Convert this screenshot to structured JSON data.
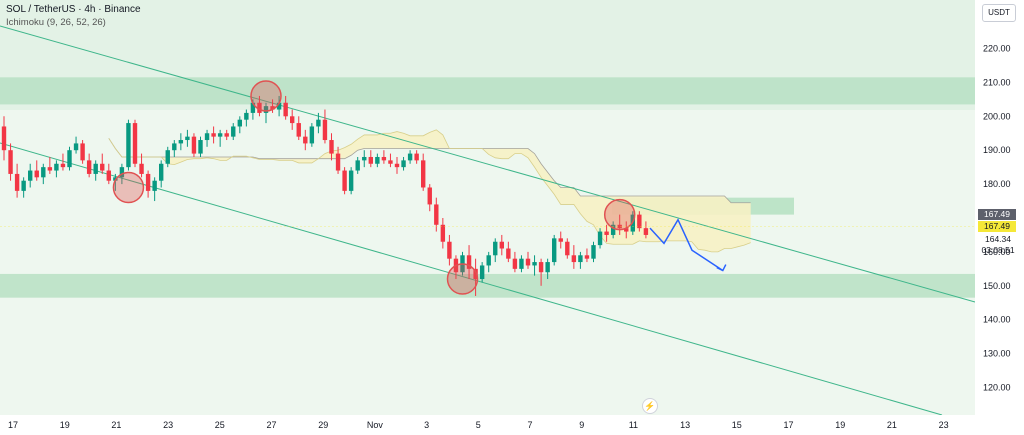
{
  "header": {
    "symbol_line": "SOL / TetherUS · 4h · Binance",
    "indicator_line": "Ichimoku (9, 26, 52, 26)"
  },
  "currency_button": "USDT",
  "price_tags": {
    "ichimoku_value": "167.49",
    "last_price": "167.49",
    "current_price": "164.34",
    "countdown": "03:08:51"
  },
  "icons": {
    "lightning": "lightning-icon"
  },
  "colors": {
    "up_candle": "#089981",
    "down_candle": "#f23645",
    "zone_green": "#b7e1c3",
    "background_green": "#e3f2e6",
    "channel_line": "#3fb68b",
    "cloud_yellow": "#f6f1c4",
    "marker_red": "#e05252",
    "projection_blue": "#2962ff"
  },
  "chart_data": {
    "type": "candlestick",
    "y_axis": {
      "ticks": [
        120,
        130,
        140,
        150,
        160,
        180,
        190,
        200,
        210,
        220
      ],
      "range": [
        110,
        225
      ]
    },
    "x_axis": {
      "ticks": [
        "17",
        "19",
        "21",
        "23",
        "25",
        "27",
        "29",
        "Nov",
        "3",
        "5",
        "7",
        "9",
        "11",
        "13",
        "15",
        "17",
        "19",
        "21",
        "23"
      ]
    },
    "zones": [
      {
        "from": 203.5,
        "to": 211.5
      },
      {
        "from": 146.5,
        "to": 153.5
      }
    ],
    "channel_lines": [
      {
        "from": {
          "x": "Oct 17",
          "y": 226
        },
        "to": {
          "x": "Nov 23",
          "y": 145
        }
      },
      {
        "from": {
          "x": "Oct 17",
          "y": 193
        },
        "to": {
          "x": "Nov 23",
          "y": 113
        }
      }
    ],
    "candles": [
      [
        197,
        200,
        187,
        190
      ],
      [
        190,
        192,
        181,
        183
      ],
      [
        183,
        186,
        176,
        178
      ],
      [
        178,
        182,
        176,
        181
      ],
      [
        181,
        186,
        179,
        184
      ],
      [
        184,
        187,
        181,
        182
      ],
      [
        182,
        186,
        180,
        185
      ],
      [
        185,
        188,
        183,
        184
      ],
      [
        184,
        187,
        182,
        186
      ],
      [
        186,
        189,
        184,
        185
      ],
      [
        185,
        191,
        184,
        190
      ],
      [
        190,
        194,
        189,
        192
      ],
      [
        192,
        193,
        186,
        187
      ],
      [
        187,
        189,
        182,
        183
      ],
      [
        183,
        187,
        181,
        186
      ],
      [
        186,
        189,
        183,
        184
      ],
      [
        184,
        186,
        180,
        181
      ],
      [
        181,
        183,
        178,
        182
      ],
      [
        182,
        186,
        180,
        185
      ],
      [
        185,
        199,
        184,
        198
      ],
      [
        198,
        199,
        185,
        186
      ],
      [
        186,
        189,
        182,
        183
      ],
      [
        183,
        184,
        176,
        178
      ],
      [
        178,
        182,
        175,
        181
      ],
      [
        181,
        187,
        179,
        186
      ],
      [
        186,
        191,
        185,
        190
      ],
      [
        190,
        193,
        188,
        192
      ],
      [
        192,
        195,
        190,
        193
      ],
      [
        193,
        196,
        191,
        194
      ],
      [
        194,
        195,
        188,
        189
      ],
      [
        189,
        194,
        188,
        193
      ],
      [
        193,
        196,
        191,
        195
      ],
      [
        195,
        197,
        192,
        194
      ],
      [
        194,
        196,
        191,
        195
      ],
      [
        195,
        196,
        193,
        194
      ],
      [
        194,
        198,
        193,
        197
      ],
      [
        197,
        200,
        195,
        199
      ],
      [
        199,
        202,
        197,
        201
      ],
      [
        201,
        205,
        199,
        204
      ],
      [
        204,
        206,
        200,
        201
      ],
      [
        201,
        204,
        198,
        203
      ],
      [
        203,
        205,
        201,
        202
      ],
      [
        202,
        206,
        200,
        204
      ],
      [
        204,
        206,
        199,
        200
      ],
      [
        200,
        202,
        196,
        198
      ],
      [
        198,
        200,
        193,
        194
      ],
      [
        194,
        196,
        190,
        192
      ],
      [
        192,
        198,
        191,
        197
      ],
      [
        197,
        201,
        195,
        199
      ],
      [
        199,
        202,
        192,
        193
      ],
      [
        193,
        195,
        187,
        189
      ],
      [
        189,
        191,
        183,
        184
      ],
      [
        184,
        185,
        177,
        178
      ],
      [
        178,
        185,
        177,
        184
      ],
      [
        184,
        188,
        183,
        187
      ],
      [
        187,
        190,
        185,
        188
      ],
      [
        188,
        190,
        185,
        186
      ],
      [
        186,
        189,
        185,
        188
      ],
      [
        188,
        190,
        186,
        187
      ],
      [
        187,
        189,
        185,
        186
      ],
      [
        186,
        188,
        183,
        185
      ],
      [
        185,
        188,
        184,
        187
      ],
      [
        187,
        190,
        186,
        189
      ],
      [
        189,
        190,
        186,
        187
      ],
      [
        187,
        189,
        178,
        179
      ],
      [
        179,
        180,
        172,
        174
      ],
      [
        174,
        176,
        166,
        168
      ],
      [
        168,
        170,
        161,
        163
      ],
      [
        163,
        165,
        156,
        158
      ],
      [
        158,
        159,
        152,
        154
      ],
      [
        154,
        160,
        153,
        159
      ],
      [
        159,
        162,
        152,
        155
      ],
      [
        155,
        158,
        147,
        152
      ],
      [
        152,
        157,
        151,
        156
      ],
      [
        156,
        160,
        154,
        159
      ],
      [
        159,
        164,
        157,
        163
      ],
      [
        163,
        165,
        159,
        161
      ],
      [
        161,
        163,
        157,
        158
      ],
      [
        158,
        160,
        154,
        155
      ],
      [
        155,
        159,
        154,
        158
      ],
      [
        158,
        160,
        155,
        156
      ],
      [
        156,
        159,
        153,
        157
      ],
      [
        157,
        158,
        150,
        154
      ],
      [
        154,
        158,
        152,
        157
      ],
      [
        157,
        165,
        156,
        164
      ],
      [
        164,
        166,
        161,
        163
      ],
      [
        163,
        164,
        158,
        159
      ],
      [
        159,
        162,
        155,
        157
      ],
      [
        157,
        160,
        155,
        159
      ],
      [
        159,
        161,
        157,
        158
      ],
      [
        158,
        163,
        157,
        162
      ],
      [
        162,
        167,
        161,
        166
      ],
      [
        166,
        168,
        163,
        165
      ],
      [
        165,
        169,
        164,
        168
      ],
      [
        168,
        171,
        165,
        167
      ],
      [
        167,
        169,
        164,
        166
      ],
      [
        166,
        172,
        165,
        171
      ],
      [
        171,
        172,
        166,
        167
      ],
      [
        167,
        169,
        164,
        165
      ]
    ],
    "projection_path": [
      167,
      162.5,
      169.5,
      160.5,
      154.5
    ],
    "markers": [
      {
        "candle": 19,
        "price": 179
      },
      {
        "candle": 40,
        "price": 206
      },
      {
        "candle": 70,
        "price": 152
      },
      {
        "candle": 94,
        "price": 171
      }
    ]
  }
}
